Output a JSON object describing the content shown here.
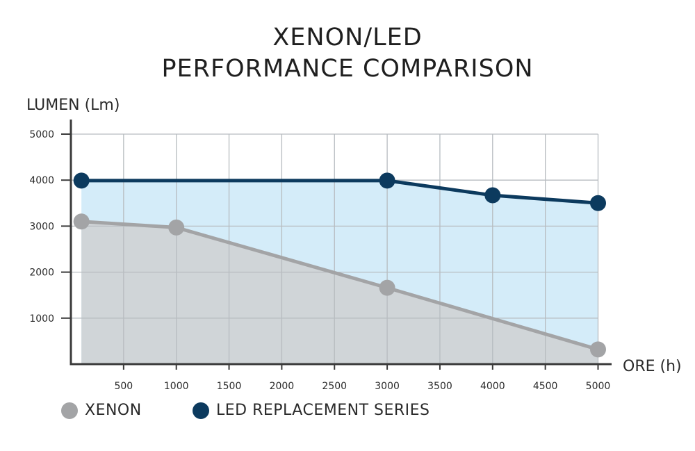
{
  "chart_data": {
    "type": "line",
    "title_line1": "XENON/LED",
    "title_line2": "PERFORMANCE COMPARISON",
    "ylabel": "LUMEN (Lm)",
    "xlabel": "ORE (h)",
    "xlim": [
      0,
      5000
    ],
    "ylim": [
      0,
      5000
    ],
    "x_ticks": [
      "500",
      "1000",
      "1500",
      "2000",
      "2500",
      "3000",
      "3500",
      "4000",
      "4500",
      "5000"
    ],
    "y_ticks": [
      "1000",
      "2000",
      "3000",
      "4000",
      "5000"
    ],
    "grid": true,
    "legend_position": "bottom-left",
    "series": [
      {
        "name": "XENON",
        "color": "#a3a4a6",
        "fill": "#d0d5d8",
        "points": [
          [
            100,
            3100
          ],
          [
            1000,
            2970
          ],
          [
            3000,
            1660
          ],
          [
            5000,
            320
          ]
        ]
      },
      {
        "name": "LED REPLACEMENT SERIES",
        "color": "#0c3a5e",
        "fill": "#d4ecf9",
        "points": [
          [
            100,
            3990
          ],
          [
            3000,
            3990
          ],
          [
            4000,
            3670
          ],
          [
            5000,
            3500
          ]
        ]
      }
    ]
  }
}
